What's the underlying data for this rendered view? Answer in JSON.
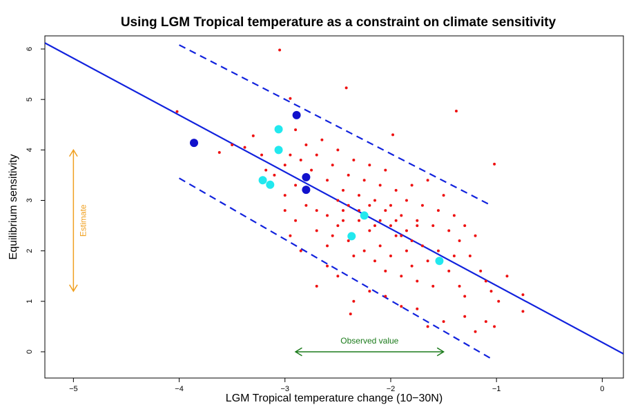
{
  "chart_data": {
    "type": "scatter",
    "title": "Using LGM Tropical temperature as a constraint on climate sensitivity",
    "x_label": "LGM Tropical temperature change (10−30N)",
    "y_label": "Equilibrium sensitivity",
    "xlim": [
      -5.27,
      0.2
    ],
    "ylim": [
      -0.52,
      6.26
    ],
    "xticks": [
      {
        "value": -5,
        "label": "−5"
      },
      {
        "value": -4,
        "label": "−4"
      },
      {
        "value": -3,
        "label": "−3"
      },
      {
        "value": -2,
        "label": "−2"
      },
      {
        "value": -1,
        "label": "−1"
      },
      0
    ],
    "yticks": [
      0,
      1,
      2,
      3,
      4,
      5,
      6
    ],
    "grid": false,
    "series": [
      {
        "color": "#ee1111",
        "size": 2,
        "x": [
          -4.02,
          -3.05,
          -2.95,
          -2.42,
          -1.98,
          -1.38,
          -1.02,
          -3.62,
          -3.5,
          -3.38,
          -3.3,
          -3.22,
          -3.18,
          -3.1,
          -3.0,
          -2.95,
          -2.9,
          -2.85,
          -2.8,
          -2.75,
          -2.7,
          -2.65,
          -2.6,
          -2.55,
          -2.5,
          -2.45,
          -2.4,
          -2.35,
          -2.3,
          -2.25,
          -2.2,
          -2.15,
          -2.1,
          -2.05,
          -2.0,
          -1.95,
          -1.9,
          -1.85,
          -1.8,
          -1.75,
          -1.7,
          -1.65,
          -1.6,
          -1.55,
          -1.5,
          -1.45,
          -1.4,
          -1.35,
          -1.3,
          -1.25,
          -1.2,
          -1.15,
          -1.1,
          -1.05,
          -0.98,
          -0.9,
          -0.75,
          -0.75,
          -1.02,
          -1.1,
          -1.3,
          -1.2,
          -1.5,
          -1.65,
          -1.75,
          -1.9,
          -2.05,
          -2.2,
          -2.35,
          -2.38,
          -2.5,
          -2.6,
          -2.7,
          -2.85,
          -2.95,
          -3.0,
          -2.9,
          -2.8,
          -2.7,
          -2.6,
          -2.5,
          -2.45,
          -2.4,
          -2.35,
          -2.3,
          -2.25,
          -2.2,
          -2.15,
          -2.1,
          -2.05,
          -2.0,
          -1.95,
          -1.9,
          -1.85,
          -1.8,
          -1.75,
          -1.7,
          -1.65,
          -1.6,
          -1.55,
          -1.45,
          -1.4,
          -1.35,
          -1.3,
          -2.5,
          -2.4,
          -2.3,
          -2.2,
          -2.1,
          -2.0,
          -1.9,
          -1.8,
          -2.6,
          -2.7,
          -2.8,
          -2.9,
          -3.0,
          -2.55,
          -2.45,
          -2.15,
          -2.05,
          -1.95,
          -1.85,
          -1.75
        ],
        "values": [
          4.76,
          5.98,
          5.02,
          5.23,
          4.3,
          4.77,
          3.72,
          3.95,
          4.1,
          4.05,
          4.28,
          3.9,
          3.6,
          3.5,
          3.7,
          3.9,
          4.4,
          3.8,
          4.1,
          3.6,
          3.9,
          4.2,
          3.4,
          3.7,
          4.0,
          3.2,
          3.5,
          3.8,
          3.1,
          3.4,
          3.7,
          3.0,
          3.3,
          3.6,
          2.9,
          3.2,
          2.7,
          3.0,
          3.3,
          2.6,
          2.9,
          3.4,
          2.5,
          2.8,
          3.1,
          2.4,
          2.7,
          2.2,
          2.5,
          1.9,
          2.3,
          1.6,
          1.4,
          1.2,
          1.0,
          1.5,
          1.13,
          0.8,
          0.5,
          0.6,
          0.7,
          0.4,
          0.6,
          0.5,
          0.85,
          0.9,
          1.1,
          1.2,
          1.0,
          0.75,
          1.5,
          1.7,
          1.3,
          2.0,
          2.3,
          2.8,
          2.6,
          2.9,
          2.4,
          2.1,
          2.5,
          2.8,
          2.2,
          1.9,
          2.6,
          2.0,
          2.4,
          1.8,
          2.1,
          1.6,
          1.9,
          2.3,
          1.5,
          2.0,
          1.7,
          1.4,
          2.1,
          1.8,
          1.3,
          2.0,
          1.6,
          1.9,
          1.3,
          1.1,
          3.0,
          2.9,
          2.8,
          2.9,
          2.6,
          2.5,
          2.3,
          2.2,
          2.7,
          2.8,
          3.2,
          3.3,
          3.1,
          2.3,
          2.6,
          2.5,
          2.8,
          2.6,
          2.4,
          2.5
        ]
      },
      {
        "color": "#1111cc",
        "size": 6,
        "x": [
          -3.86,
          -2.89,
          -2.8,
          -2.8
        ],
        "values": [
          4.14,
          4.69,
          3.46,
          3.21
        ]
      },
      {
        "color": "#22e8ee",
        "size": 6,
        "x": [
          -3.06,
          -3.06,
          -3.21,
          -3.14,
          -2.25,
          -2.37,
          -1.54
        ],
        "values": [
          4.41,
          4.0,
          3.4,
          3.31,
          2.7,
          2.29,
          1.8
        ]
      }
    ],
    "lines": [
      {
        "color": "#1122dd",
        "dashed": false,
        "x": [
          -5.27,
          0.2
        ],
        "values": [
          6.12,
          -0.04
        ]
      },
      {
        "color": "#1122dd",
        "dashed": true,
        "x": [
          -4.0,
          -1.05
        ],
        "values": [
          6.08,
          2.9
        ]
      },
      {
        "color": "#1122dd",
        "dashed": true,
        "x": [
          -4.0,
          -1.03
        ],
        "values": [
          3.44,
          -0.16
        ]
      }
    ],
    "annotations": [
      {
        "text": "Estimate",
        "color": "#f0a020",
        "x": [
          -5,
          -5
        ],
        "y": [
          4.0,
          1.2
        ]
      },
      {
        "text": "Observed value",
        "color": "#1a7a1a",
        "x": [
          -2.9,
          -1.5
        ],
        "y": [
          0,
          0
        ]
      }
    ]
  }
}
